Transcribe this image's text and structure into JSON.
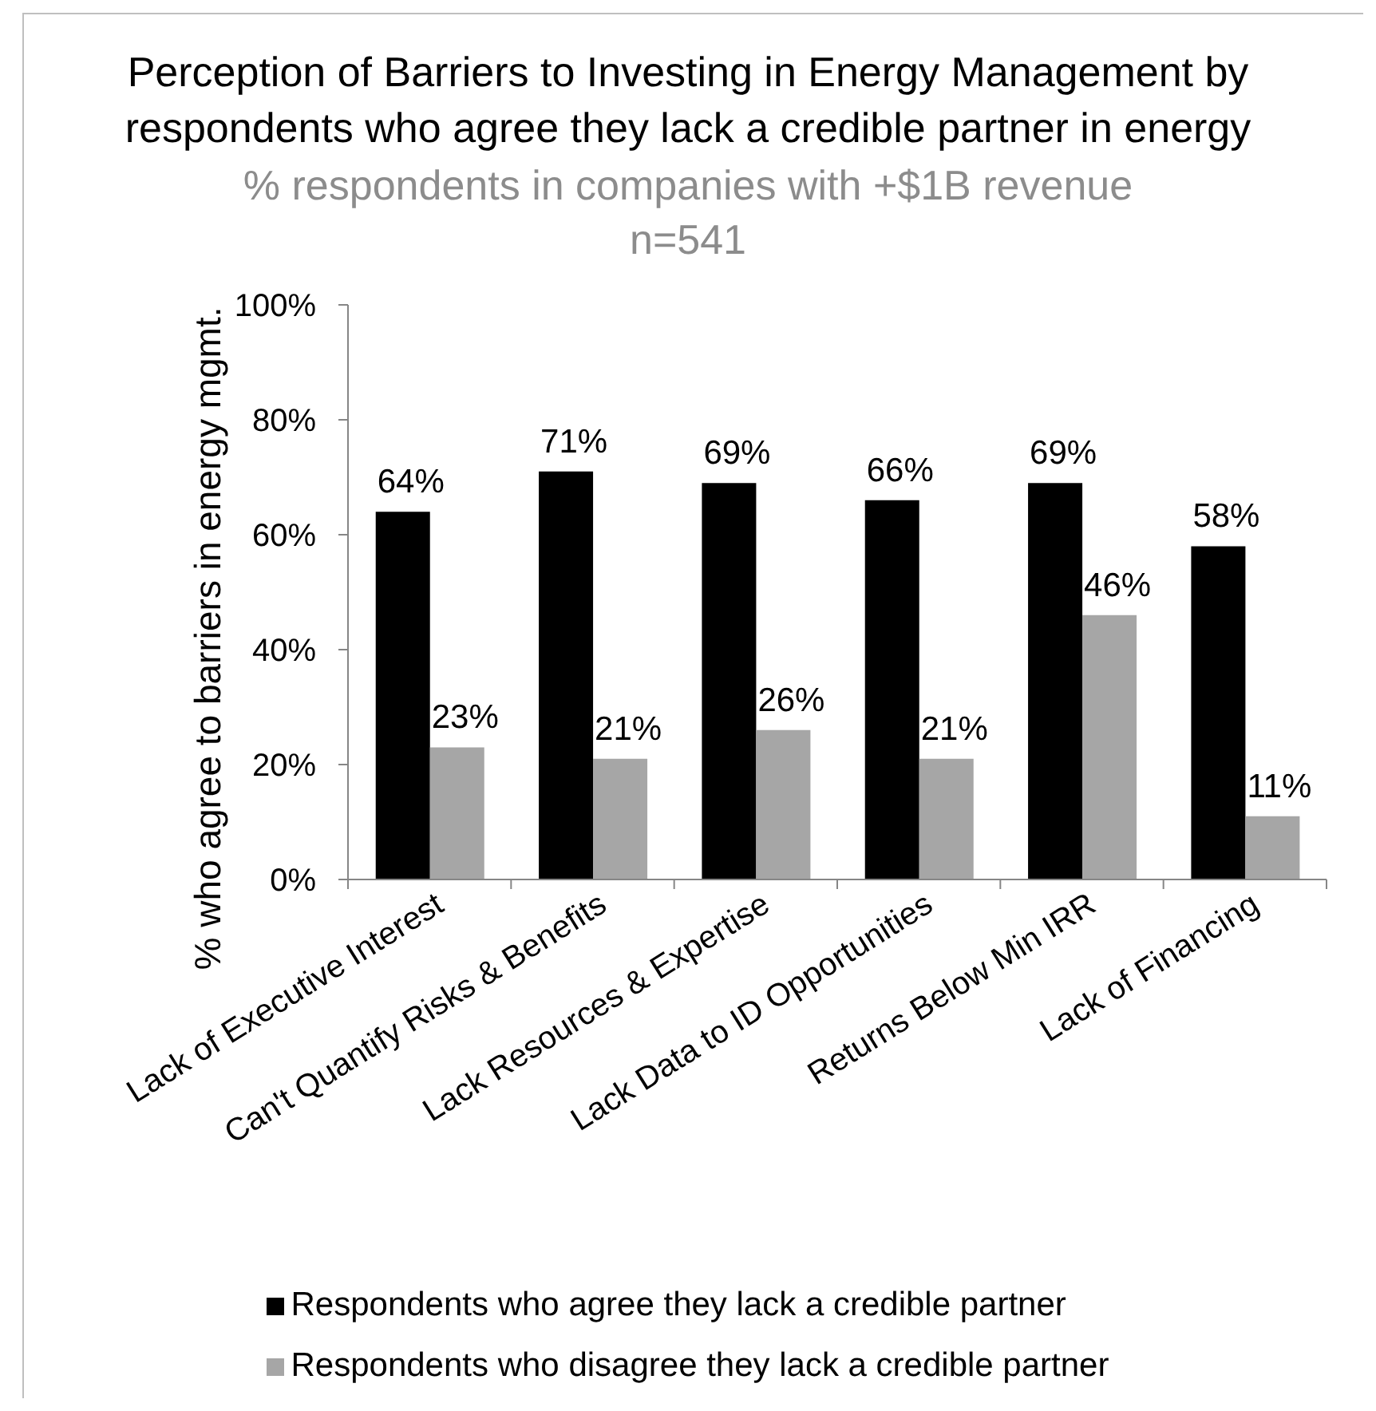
{
  "chart_data": {
    "type": "bar",
    "title": "Perception of Barriers to Investing in Energy Management by respondents who agree they lack a credible partner in energy",
    "subtitle": "% respondents in companies with +$1B revenue",
    "annotations": [
      "n=541"
    ],
    "ylabel": "% who agree to barriers in energy mgmt.",
    "categories": [
      "Lack of Executive Interest",
      "Can't Quantify Risks & Benefits",
      "Lack Resources & Expertise",
      "Lack Data to ID Opportunities",
      "Returns Below Min IRR",
      "Lack of Financing"
    ],
    "series": [
      {
        "name": "Respondents who agree they lack a credible partner",
        "color": "#000000",
        "values": [
          64,
          71,
          69,
          66,
          69,
          58
        ],
        "value_labels": [
          "64%",
          "71%",
          "69%",
          "66%",
          "69%",
          "58%"
        ]
      },
      {
        "name": "Respondents who disagree they lack a credible partner",
        "color": "#a6a6a6",
        "values": [
          23,
          21,
          26,
          21,
          46,
          11
        ],
        "value_labels": [
          "23%",
          "21%",
          "26%",
          "21%",
          "46%",
          "11%"
        ]
      }
    ],
    "ylim": [
      0,
      100
    ],
    "yticks": [
      {
        "value": 0,
        "label": "0%"
      },
      {
        "value": 20,
        "label": "20%"
      },
      {
        "value": 40,
        "label": "40%"
      },
      {
        "value": 60,
        "label": "60%"
      },
      {
        "value": 80,
        "label": "80%"
      },
      {
        "value": 100,
        "label": "100%"
      }
    ],
    "legend": "bottom"
  }
}
